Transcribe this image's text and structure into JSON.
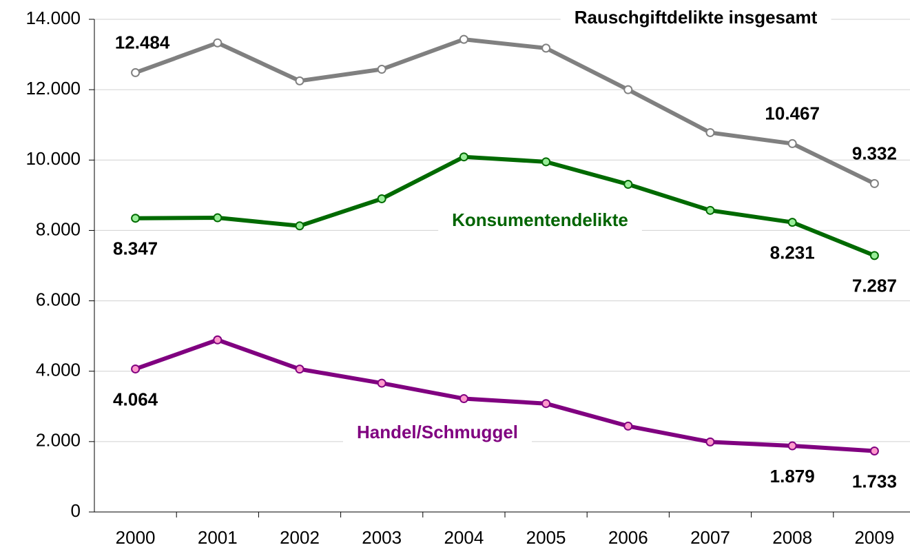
{
  "chart_data": {
    "type": "line",
    "categories": [
      "2000",
      "2001",
      "2002",
      "2003",
      "2004",
      "2005",
      "2006",
      "2007",
      "2008",
      "2009"
    ],
    "series": [
      {
        "name": "Rauschgiftdelikte insgesamt",
        "color": "#808080",
        "marker_fill": "#ffffff",
        "label_color": "#000000",
        "values": [
          12484,
          13330,
          12250,
          12580,
          13430,
          13180,
          12000,
          10780,
          10467,
          9332
        ],
        "value_labels": [
          "12.484",
          null,
          null,
          null,
          null,
          null,
          null,
          null,
          "10.467",
          "9.332"
        ]
      },
      {
        "name": "Konsumentendelikte",
        "color": "#006a00",
        "marker_fill": "#99ee99",
        "label_color": "#006400",
        "values": [
          8347,
          8360,
          8130,
          8900,
          10090,
          9950,
          9310,
          8570,
          8231,
          7287
        ],
        "value_labels": [
          "8.347",
          null,
          null,
          null,
          null,
          null,
          null,
          null,
          "8.231",
          "7.287"
        ]
      },
      {
        "name": "Handel/Schmuggel",
        "color": "#800080",
        "marker_fill": "#ff99cc",
        "label_color": "#800080",
        "values": [
          4064,
          4890,
          4060,
          3660,
          3220,
          3080,
          2440,
          1990,
          1879,
          1733
        ],
        "value_labels": [
          "4.064",
          null,
          null,
          null,
          null,
          null,
          null,
          null,
          "1.879",
          "1.733"
        ]
      }
    ],
    "ylim": [
      0,
      14000
    ],
    "yticks": [
      0,
      {
        "value": 2000,
        "label": "2.000"
      },
      {
        "value": 4000,
        "label": "4.000"
      },
      {
        "value": 6000,
        "label": "6.000"
      },
      {
        "value": 8000,
        "label": "8.000"
      },
      {
        "value": 10000,
        "label": "10.000"
      },
      {
        "value": 12000,
        "label": "12.000"
      },
      {
        "value": 14000,
        "label": "14.000"
      }
    ],
    "grid": true
  }
}
